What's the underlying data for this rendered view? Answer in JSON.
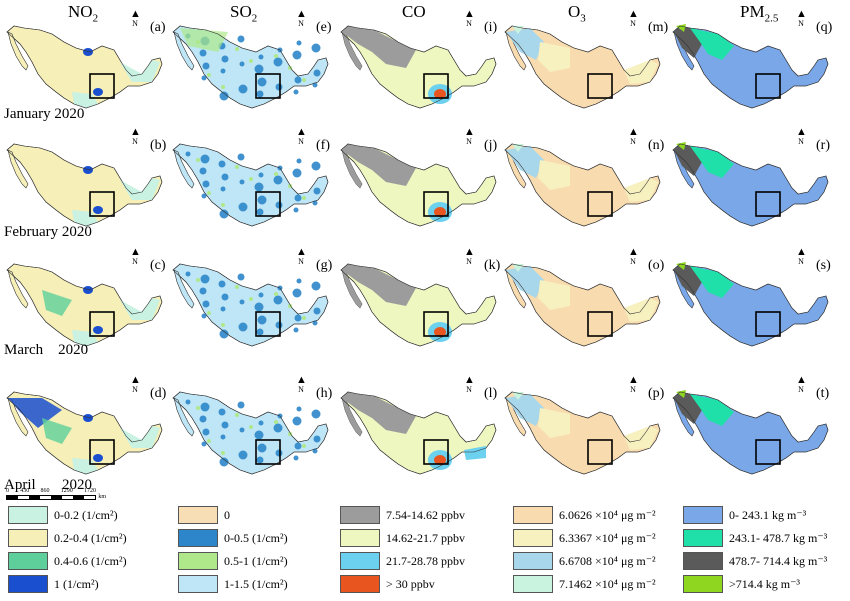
{
  "columns": [
    {
      "name": "NO",
      "sub": "2"
    },
    {
      "name": "SO",
      "sub": "2"
    },
    {
      "name": "CO",
      "sub": ""
    },
    {
      "name": "O",
      "sub": "3"
    },
    {
      "name": "PM",
      "sub": "2.5"
    }
  ],
  "months": [
    "January 2020",
    "February 2020",
    "March    2020",
    "April"
  ],
  "april_year": "2020",
  "north_label": "N",
  "panel_labels": [
    [
      "(a)",
      "(e)",
      "(i)",
      "(m)",
      "(q)"
    ],
    [
      "(b)",
      "(f)",
      "(j)",
      "(n)",
      "(r)"
    ],
    [
      "(c)",
      "(g)",
      "(k)",
      "(o)",
      "(s)"
    ],
    [
      "(d)",
      "(h)",
      "(l)",
      "(p)",
      "(t)"
    ]
  ],
  "scale_bar": {
    "ticks": [
      "0",
      "430",
      "860",
      "1290",
      "1720"
    ],
    "unit": "km"
  },
  "legends": {
    "no2": [
      {
        "label": "0-0.2 (1/cm²)",
        "color": "#c9f2e3"
      },
      {
        "label": "0.2-0.4 (1/cm²)",
        "color": "#f6efb8"
      },
      {
        "label": "0.4-0.6 (1/cm²)",
        "color": "#5ecf9a"
      },
      {
        "label": "1 (1/cm²)",
        "color": "#1a4fcf"
      }
    ],
    "so2": [
      {
        "label": "0",
        "color": "#f7deb4"
      },
      {
        "label": "0-0.5 (1/cm²)",
        "color": "#2c86c9"
      },
      {
        "label": "0.5-1 (1/cm²)",
        "color": "#aee88a"
      },
      {
        "label": "1-1.5 (1/cm²)",
        "color": "#bfe6f7"
      }
    ],
    "co": [
      {
        "label": "7.54-14.62 ppbv",
        "color": "#9c9c9c"
      },
      {
        "label": "14.62-21.7 ppbv",
        "color": "#eef7c0"
      },
      {
        "label": "21.7-28.78 ppbv",
        "color": "#6cd0ef"
      },
      {
        "label": "> 30 ppbv",
        "color": "#e8551e"
      }
    ],
    "o3": [
      {
        "label": "6.0626 ×10⁴ μg m⁻²",
        "color": "#f8dcb0"
      },
      {
        "label": "6.3367 ×10⁴ μg m⁻²",
        "color": "#f7f0bf"
      },
      {
        "label": "6.6708 ×10⁴ μg m⁻²",
        "color": "#a8d6ea"
      },
      {
        "label": "7.1462 ×10⁴ μg m⁻²",
        "color": "#c9f3df"
      }
    ],
    "pm25": [
      {
        "label": "0- 243.1 kg m⁻³",
        "color": "#7aa7e8"
      },
      {
        "label": "243.1- 478.7 kg m⁻³",
        "color": "#1fe0a8"
      },
      {
        "label": "478.7- 714.4 kg m⁻³",
        "color": "#5a5a5a"
      },
      {
        "label": ">714.4 kg m⁻³",
        "color": "#8ed61f"
      }
    ]
  },
  "colors": {
    "no2_base": "#f6efb8",
    "no2_low": "#c9f2e3",
    "no2_mid": "#5ecf9a",
    "no2_high": "#1a4fcf",
    "so2_base": "#bfe6f7",
    "so2_mid": "#2c86c9",
    "so2_green": "#aee88a",
    "so2_zero": "#f7deb4",
    "co_gray": "#9c9c9c",
    "co_base": "#eef7c0",
    "co_blue": "#6cd0ef",
    "co_red": "#e8551e",
    "o3_base": "#f8dcb0",
    "o3_yellow": "#f7f0bf",
    "o3_blue": "#a8d6ea",
    "o3_mint": "#c9f3df",
    "pm_base": "#7aa7e8",
    "pm_teal": "#1fe0a8",
    "pm_dark": "#5a5a5a",
    "pm_green": "#8ed61f"
  }
}
